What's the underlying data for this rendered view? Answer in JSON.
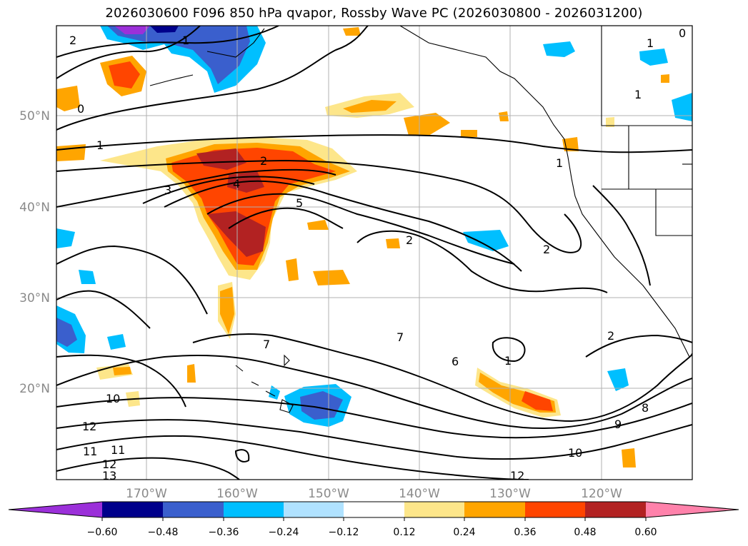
{
  "title": "2026030600 F096 850 hPa qvapor, Rossby Wave PC (2026030800 - 2026031200)",
  "map": {
    "lat_labels": [
      "50°N",
      "40°N",
      "30°N",
      "20°N"
    ],
    "lon_labels": [
      "170°W",
      "160°W",
      "150°W",
      "140°W",
      "130°W",
      "120°W"
    ],
    "contour_labels": [
      "2",
      "1",
      "0",
      "1",
      "1",
      "1",
      "1",
      "2",
      "3",
      "4",
      "5",
      "2",
      "2",
      "2",
      "7",
      "7",
      "6",
      "1",
      "8",
      "9",
      "10",
      "11",
      "11",
      "12",
      "12",
      "13",
      "10",
      "12",
      "0"
    ]
  },
  "colorbar": {
    "ticks": [
      "−0.60",
      "−0.48",
      "−0.36",
      "−0.24",
      "−0.12",
      "0.12",
      "0.24",
      "0.36",
      "0.48",
      "0.60"
    ],
    "colors": [
      "#9b30d9",
      "#00008b",
      "#3a5fcd",
      "#00bfff",
      "#b0e2ff",
      "#ffffff",
      "#fde68a",
      "#ffa500",
      "#ff4500",
      "#b22222",
      "#ff82ab"
    ]
  }
}
